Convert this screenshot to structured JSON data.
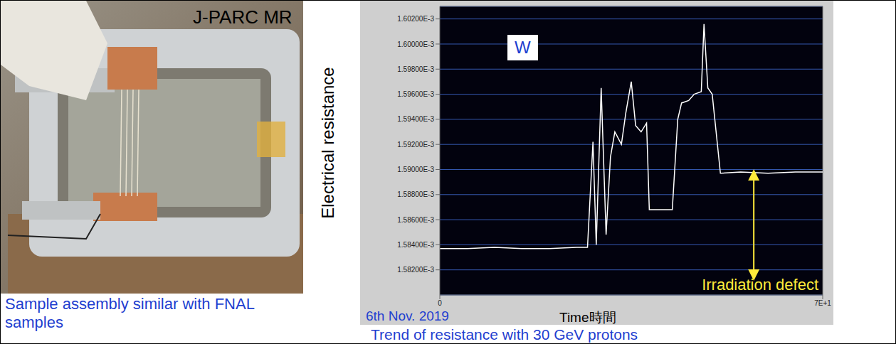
{
  "chart_data": {
    "type": "line",
    "title": "W",
    "xlabel": "Time時間",
    "ylabel": "Electrical resistance",
    "date": "6th Nov. 2019",
    "annotation": "Irradiation defect",
    "caption": "Trend of resistance with 30 GeV protons",
    "x": [
      0,
      5,
      10,
      15,
      20,
      25,
      27,
      28,
      28.6,
      29.5,
      30.4,
      31.2,
      32,
      33.2,
      34,
      35,
      35.8,
      36.8,
      37.8,
      38.3,
      42.5,
      43.5,
      44.2,
      45.5,
      46.5,
      47.8,
      48.3,
      49,
      49.8,
      51.3,
      55,
      60,
      65,
      70
    ],
    "series": [
      {
        "name": "W",
        "color": "#ffffff",
        "values": [
          0.0015837,
          0.0015837,
          0.0015838,
          0.0015837,
          0.0015837,
          0.0015838,
          0.0015838,
          0.0015922,
          0.001584,
          0.0015965,
          0.0015848,
          0.001591,
          0.001593,
          0.001592,
          0.0015945,
          0.001597,
          0.0015935,
          0.001593,
          0.0015937,
          0.0015868,
          0.0015868,
          0.001594,
          0.0015953,
          0.0015955,
          0.001596,
          0.0015962,
          0.0016016,
          0.0015965,
          0.001596,
          0.0015897,
          0.0015898,
          0.0015897,
          0.0015898,
          0.0015898
        ]
      }
    ],
    "xlim": [
      0,
      70
    ],
    "xticks": [
      0,
      {
        "value": 70,
        "label": "7E+1"
      }
    ],
    "ylim": [
      0.00158,
      0.001603
    ],
    "yticks": [
      {
        "value": 0.001582,
        "label": "1.58200E-3"
      },
      {
        "value": 0.001584,
        "label": "1.58400E-3"
      },
      {
        "value": 0.001586,
        "label": "1.58600E-3"
      },
      {
        "value": 0.001588,
        "label": "1.58800E-3"
      },
      {
        "value": 0.00159,
        "label": "1.59000E-3"
      },
      {
        "value": 0.001592,
        "label": "1.59200E-3"
      },
      {
        "value": 0.001594,
        "label": "1.59400E-3"
      },
      {
        "value": 0.001596,
        "label": "1.59600E-3"
      },
      {
        "value": 0.001598,
        "label": "1.59800E-3"
      },
      {
        "value": 0.0016,
        "label": "1.60000E-3"
      },
      {
        "value": 0.001602,
        "label": "1.60200E-3"
      }
    ],
    "grid": true
  },
  "photo": {
    "label": "J-PARC MR",
    "caption": "Sample assembly similar with FNAL samples"
  }
}
